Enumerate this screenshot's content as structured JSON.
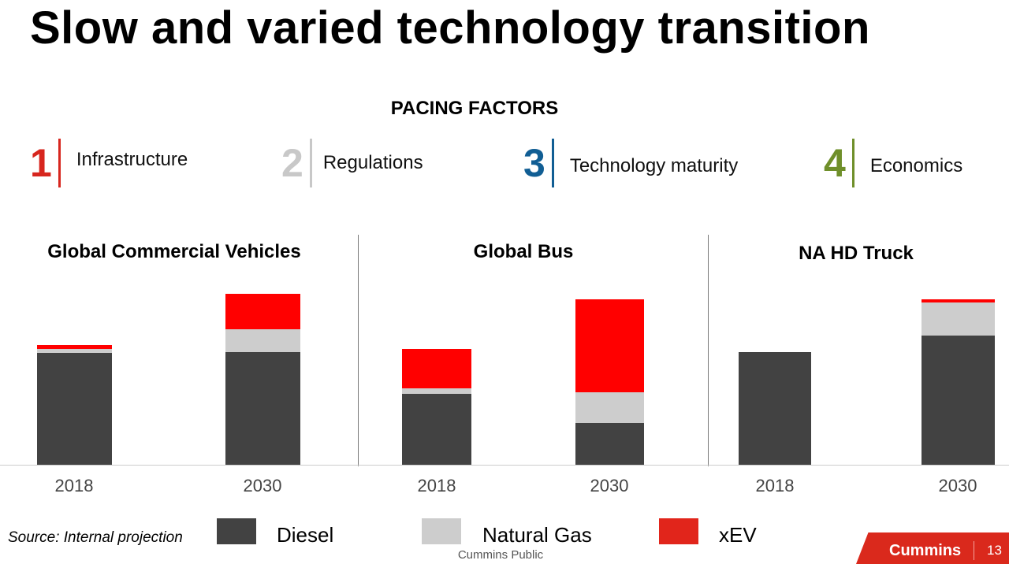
{
  "title": "Slow and varied technology transition",
  "pacing_title": "PACING FACTORS",
  "factors": [
    {
      "num": "1",
      "label": "Infrastructure",
      "color": "#d7261e"
    },
    {
      "num": "2",
      "label": "Regulations",
      "color": "#c8c8c8"
    },
    {
      "num": "3",
      "label": "Technology maturity",
      "color": "#115e94"
    },
    {
      "num": "4",
      "label": "Economics",
      "color": "#6f8f2a"
    }
  ],
  "chart_data": [
    {
      "type": "bar",
      "stacked": true,
      "title": "Global Commercial Vehicles",
      "categories": [
        "2018",
        "2030"
      ],
      "units": "relative (no axis shown)",
      "series": [
        {
          "name": "Diesel",
          "values": [
            142,
            143
          ]
        },
        {
          "name": "Natural Gas",
          "values": [
            5,
            29
          ]
        },
        {
          "name": "xEV",
          "values": [
            5,
            45
          ]
        }
      ]
    },
    {
      "type": "bar",
      "stacked": true,
      "title": "Global Bus",
      "categories": [
        "2018",
        "2030"
      ],
      "units": "relative (no axis shown)",
      "series": [
        {
          "name": "Diesel",
          "values": [
            90,
            53
          ]
        },
        {
          "name": "Natural Gas",
          "values": [
            7,
            39
          ]
        },
        {
          "name": "xEV",
          "values": [
            50,
            118
          ]
        }
      ]
    },
    {
      "type": "bar",
      "stacked": true,
      "title": "NA HD Truck",
      "categories": [
        "2018",
        "2030"
      ],
      "units": "relative (no axis shown)",
      "series": [
        {
          "name": "Diesel",
          "values": [
            143,
            164
          ]
        },
        {
          "name": "Natural Gas",
          "values": [
            0,
            42
          ]
        },
        {
          "name": "xEV",
          "values": [
            0,
            4
          ]
        }
      ]
    }
  ],
  "legend": [
    {
      "name": "Diesel",
      "color": "#424242"
    },
    {
      "name": "Natural Gas",
      "color": "#cdcdcd"
    },
    {
      "name": "xEV",
      "color": "#ff0000"
    }
  ],
  "legend_swatch_xev": "#e1251b",
  "source": "Source: Internal projection",
  "classification": "Cummins Public",
  "brand": "Cummins",
  "page_number": "13"
}
